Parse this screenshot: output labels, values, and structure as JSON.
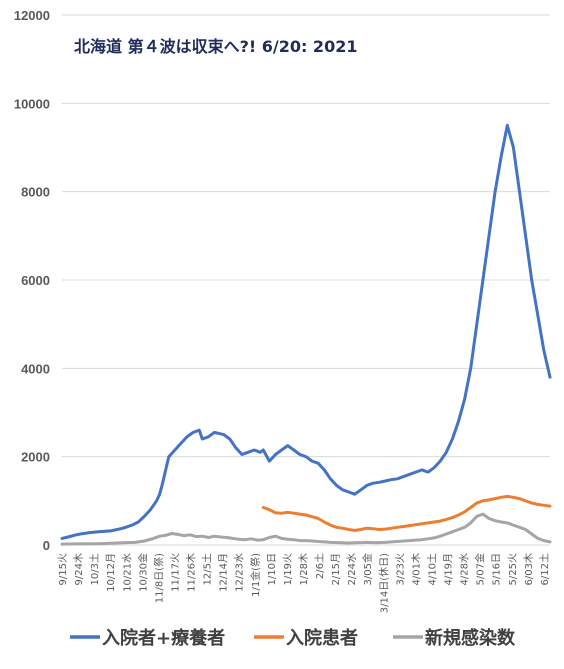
{
  "chart_data": {
    "type": "line",
    "title": "北海道 第４波は収束へ?! 6/20: 2021",
    "ylim": [
      0,
      12000
    ],
    "yticks": [
      "0",
      "2000",
      "4000",
      "6000",
      "8000",
      "10000",
      "12000"
    ],
    "xtick_labels": [
      "9/15火",
      "9/24木",
      "10/3土",
      "10/12月",
      "10/21水",
      "10/30金",
      "11/8日(祭)",
      "11/17火",
      "11/26木",
      "12/5土",
      "12/14月",
      "12/23水",
      "1/1金(祭)",
      "1/10日",
      "1/19火",
      "1/28木",
      "2/6土",
      "2/15月",
      "2/24水",
      "3/05金",
      "3/14日(休日)",
      "3/23火",
      "4/01木",
      "4/10土",
      "4/19月",
      "4/28水",
      "5/07金",
      "5/16日",
      "5/25火",
      "6/03木",
      "6/12土"
    ],
    "grid": true,
    "legend_position": "bottom",
    "series": [
      {
        "name": "入院者+療養者",
        "color": "#4472c4",
        "points": [
          [
            0,
            150
          ],
          [
            2,
            180
          ],
          [
            4,
            220
          ],
          [
            6,
            250
          ],
          [
            9,
            280
          ],
          [
            12,
            300
          ],
          [
            16,
            320
          ],
          [
            20,
            380
          ],
          [
            23,
            450
          ],
          [
            25,
            520
          ],
          [
            27,
            650
          ],
          [
            29,
            800
          ],
          [
            31,
            1000
          ],
          [
            32,
            1150
          ],
          [
            33,
            1400
          ],
          [
            34,
            1700
          ],
          [
            35,
            2000
          ],
          [
            37,
            2150
          ],
          [
            39,
            2300
          ],
          [
            41,
            2450
          ],
          [
            43,
            2550
          ],
          [
            45,
            2600
          ],
          [
            46,
            2400
          ],
          [
            48,
            2450
          ],
          [
            50,
            2550
          ],
          [
            53,
            2500
          ],
          [
            55,
            2400
          ],
          [
            57,
            2200
          ],
          [
            59,
            2050
          ],
          [
            61,
            2100
          ],
          [
            63,
            2150
          ],
          [
            65,
            2100
          ],
          [
            66,
            2150
          ],
          [
            68,
            1900
          ],
          [
            70,
            2050
          ],
          [
            72,
            2150
          ],
          [
            74,
            2250
          ],
          [
            76,
            2150
          ],
          [
            78,
            2050
          ],
          [
            80,
            2000
          ],
          [
            82,
            1900
          ],
          [
            84,
            1850
          ],
          [
            86,
            1700
          ],
          [
            88,
            1500
          ],
          [
            90,
            1350
          ],
          [
            92,
            1250
          ],
          [
            94,
            1200
          ],
          [
            96,
            1150
          ],
          [
            98,
            1250
          ],
          [
            100,
            1350
          ],
          [
            102,
            1400
          ],
          [
            104,
            1420
          ],
          [
            106,
            1450
          ],
          [
            108,
            1480
          ],
          [
            110,
            1500
          ],
          [
            112,
            1550
          ],
          [
            114,
            1600
          ],
          [
            116,
            1650
          ],
          [
            118,
            1700
          ],
          [
            120,
            1650
          ],
          [
            122,
            1750
          ],
          [
            124,
            1900
          ],
          [
            126,
            2100
          ],
          [
            128,
            2400
          ],
          [
            130,
            2800
          ],
          [
            132,
            3300
          ],
          [
            134,
            4000
          ],
          [
            136,
            5000
          ],
          [
            138,
            6000
          ],
          [
            140,
            7000
          ],
          [
            142,
            8000
          ],
          [
            144,
            8800
          ],
          [
            146,
            9500
          ],
          [
            148,
            9000
          ],
          [
            150,
            8000
          ],
          [
            152,
            7000
          ],
          [
            154,
            6000
          ],
          [
            156,
            5200
          ],
          [
            158,
            4400
          ],
          [
            160,
            3800
          ]
        ]
      },
      {
        "name": "入院患者",
        "color": "#ed7d31",
        "points": [
          [
            66,
            850
          ],
          [
            68,
            800
          ],
          [
            70,
            730
          ],
          [
            72,
            720
          ],
          [
            74,
            740
          ],
          [
            76,
            720
          ],
          [
            78,
            700
          ],
          [
            80,
            680
          ],
          [
            82,
            640
          ],
          [
            84,
            600
          ],
          [
            86,
            520
          ],
          [
            88,
            450
          ],
          [
            90,
            400
          ],
          [
            92,
            380
          ],
          [
            94,
            350
          ],
          [
            96,
            330
          ],
          [
            98,
            350
          ],
          [
            100,
            380
          ],
          [
            102,
            370
          ],
          [
            104,
            350
          ],
          [
            106,
            360
          ],
          [
            108,
            380
          ],
          [
            110,
            400
          ],
          [
            112,
            420
          ],
          [
            114,
            440
          ],
          [
            116,
            460
          ],
          [
            118,
            480
          ],
          [
            120,
            500
          ],
          [
            122,
            520
          ],
          [
            124,
            540
          ],
          [
            126,
            580
          ],
          [
            128,
            620
          ],
          [
            130,
            680
          ],
          [
            132,
            750
          ],
          [
            134,
            850
          ],
          [
            136,
            950
          ],
          [
            138,
            1000
          ],
          [
            140,
            1020
          ],
          [
            142,
            1050
          ],
          [
            144,
            1080
          ],
          [
            146,
            1100
          ],
          [
            148,
            1080
          ],
          [
            150,
            1050
          ],
          [
            152,
            1000
          ],
          [
            154,
            950
          ],
          [
            156,
            920
          ],
          [
            158,
            900
          ],
          [
            160,
            880
          ]
        ]
      },
      {
        "name": "新規感染数",
        "color": "#a5a5a5",
        "points": [
          [
            0,
            20
          ],
          [
            4,
            25
          ],
          [
            8,
            30
          ],
          [
            12,
            30
          ],
          [
            16,
            40
          ],
          [
            20,
            50
          ],
          [
            24,
            60
          ],
          [
            27,
            90
          ],
          [
            30,
            150
          ],
          [
            32,
            200
          ],
          [
            34,
            220
          ],
          [
            36,
            260
          ],
          [
            38,
            240
          ],
          [
            40,
            210
          ],
          [
            42,
            230
          ],
          [
            44,
            190
          ],
          [
            46,
            200
          ],
          [
            48,
            170
          ],
          [
            50,
            200
          ],
          [
            52,
            180
          ],
          [
            54,
            170
          ],
          [
            56,
            150
          ],
          [
            58,
            130
          ],
          [
            60,
            120
          ],
          [
            62,
            140
          ],
          [
            64,
            110
          ],
          [
            66,
            120
          ],
          [
            68,
            170
          ],
          [
            70,
            200
          ],
          [
            72,
            150
          ],
          [
            74,
            130
          ],
          [
            76,
            120
          ],
          [
            78,
            100
          ],
          [
            80,
            100
          ],
          [
            82,
            90
          ],
          [
            84,
            80
          ],
          [
            86,
            70
          ],
          [
            88,
            60
          ],
          [
            90,
            55
          ],
          [
            92,
            50
          ],
          [
            94,
            45
          ],
          [
            96,
            50
          ],
          [
            98,
            55
          ],
          [
            100,
            60
          ],
          [
            102,
            55
          ],
          [
            104,
            55
          ],
          [
            106,
            60
          ],
          [
            108,
            70
          ],
          [
            110,
            80
          ],
          [
            112,
            90
          ],
          [
            114,
            100
          ],
          [
            116,
            110
          ],
          [
            118,
            120
          ],
          [
            120,
            140
          ],
          [
            122,
            160
          ],
          [
            124,
            200
          ],
          [
            126,
            250
          ],
          [
            128,
            300
          ],
          [
            130,
            350
          ],
          [
            132,
            400
          ],
          [
            134,
            500
          ],
          [
            136,
            650
          ],
          [
            138,
            700
          ],
          [
            140,
            600
          ],
          [
            142,
            550
          ],
          [
            144,
            520
          ],
          [
            146,
            500
          ],
          [
            148,
            450
          ],
          [
            150,
            400
          ],
          [
            152,
            350
          ],
          [
            154,
            250
          ],
          [
            156,
            150
          ],
          [
            158,
            100
          ],
          [
            160,
            70
          ]
        ]
      }
    ]
  }
}
